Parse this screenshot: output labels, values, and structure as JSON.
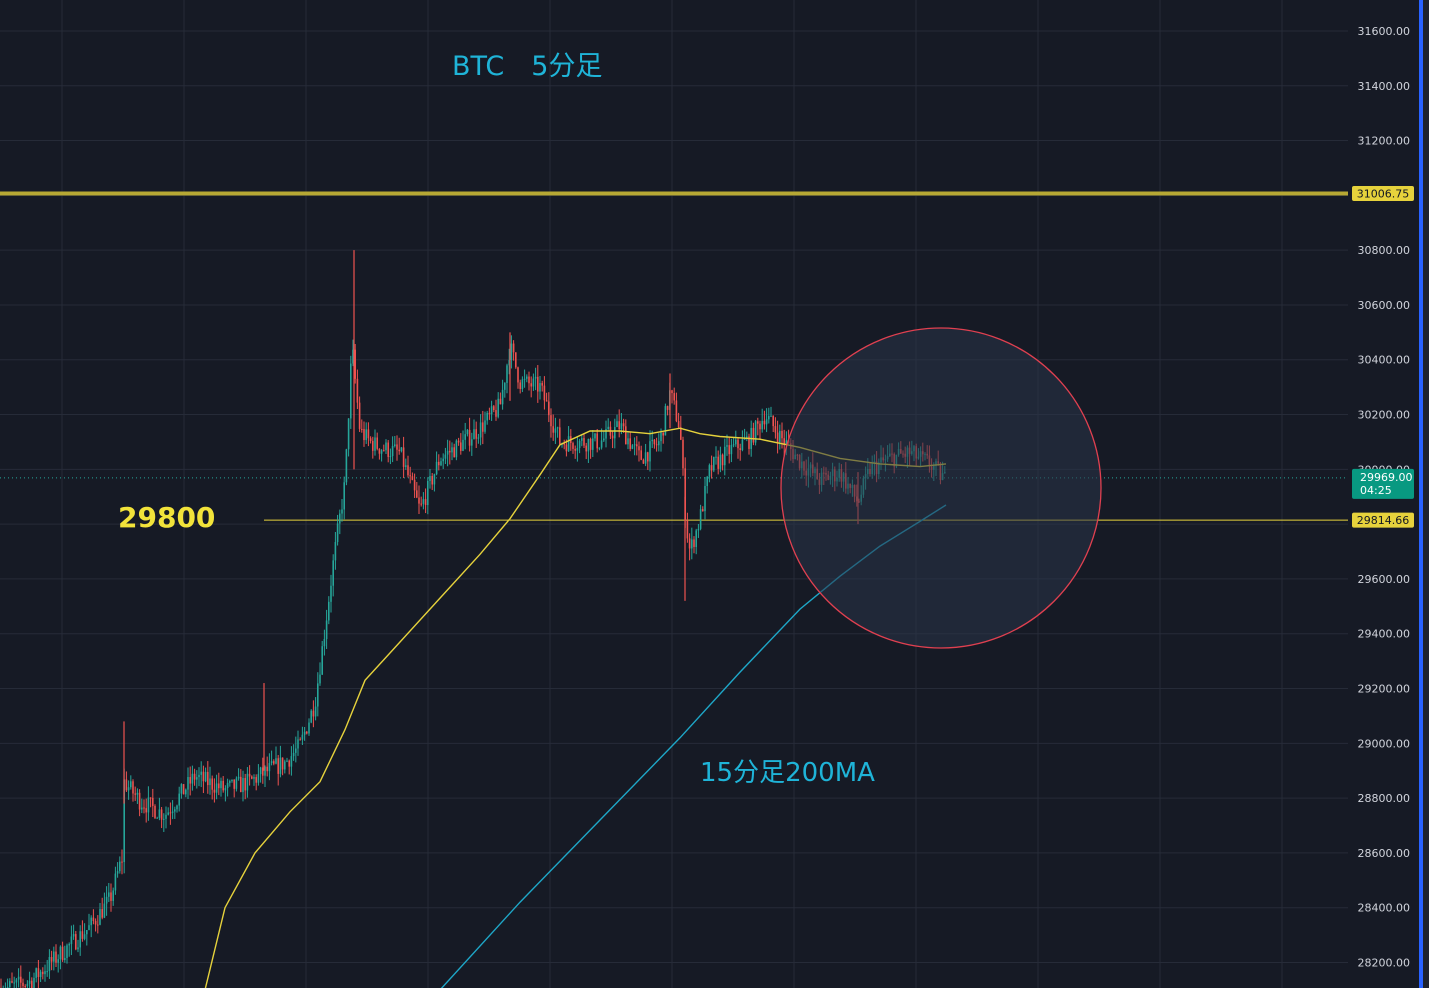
{
  "chart_data": {
    "type": "candlestick",
    "title": "BTC　5分足",
    "ma_label": "15分足200MA",
    "level_label": "29800",
    "y_ticks": [
      "28200.00",
      "28400.00",
      "28600.00",
      "28800.00",
      "29000.00",
      "29200.00",
      "29400.00",
      "29600.00",
      "30000.00",
      "30200.00",
      "30400.00",
      "30600.00",
      "30800.00",
      "31200.00",
      "31400.00",
      "31600.00"
    ],
    "ylim": [
      28107,
      31713
    ],
    "resistance": {
      "value": 31006.75,
      "label": "31006.75"
    },
    "support": {
      "value": 29814.66,
      "label": "29814.66"
    },
    "last_price": {
      "value": 29969.0,
      "label": "29969.00",
      "countdown": "04:25"
    },
    "grid": true,
    "colors": {
      "background": "#161a25",
      "grid": "#262b38",
      "up": "#26a69a",
      "down": "#ef5350",
      "ma_fast": "#e6d23c",
      "ma_200": "#1ea7c8",
      "resistance": "#b7a834",
      "support": "#e6d23c",
      "annotation": "#1fb4d8",
      "level_text": "#f2e33a",
      "circle": "#e04050"
    },
    "price_path": [
      [
        0,
        28100
      ],
      [
        30,
        28130
      ],
      [
        60,
        28230
      ],
      [
        90,
        28330
      ],
      [
        110,
        28430
      ],
      [
        122,
        28580
      ],
      [
        124,
        28860
      ],
      [
        140,
        28790
      ],
      [
        165,
        28740
      ],
      [
        195,
        28880
      ],
      [
        225,
        28830
      ],
      [
        250,
        28860
      ],
      [
        268,
        28900
      ],
      [
        285,
        28930
      ],
      [
        300,
        28990
      ],
      [
        315,
        29150
      ],
      [
        325,
        29420
      ],
      [
        333,
        29650
      ],
      [
        338,
        29780
      ],
      [
        345,
        29950
      ],
      [
        352,
        30450
      ],
      [
        360,
        30140
      ],
      [
        370,
        30100
      ],
      [
        380,
        30080
      ],
      [
        400,
        30060
      ],
      [
        420,
        29850
      ],
      [
        440,
        30040
      ],
      [
        460,
        30090
      ],
      [
        480,
        30150
      ],
      [
        500,
        30230
      ],
      [
        510,
        30450
      ],
      [
        520,
        30320
      ],
      [
        540,
        30300
      ],
      [
        560,
        30100
      ],
      [
        580,
        30100
      ],
      [
        600,
        30100
      ],
      [
        620,
        30160
      ],
      [
        640,
        30040
      ],
      [
        660,
        30100
      ],
      [
        670,
        30280
      ],
      [
        680,
        30150
      ],
      [
        686,
        29800
      ],
      [
        690,
        29700
      ],
      [
        700,
        29820
      ],
      [
        710,
        30000
      ],
      [
        730,
        30070
      ],
      [
        750,
        30110
      ],
      [
        765,
        30200
      ],
      [
        780,
        30120
      ],
      [
        800,
        30030
      ],
      [
        820,
        29960
      ],
      [
        840,
        29990
      ],
      [
        858,
        29880
      ],
      [
        870,
        30000
      ],
      [
        890,
        30040
      ],
      [
        910,
        30060
      ],
      [
        930,
        30020
      ],
      [
        946,
        29960
      ]
    ],
    "ma_fast": [
      [
        205,
        28100
      ],
      [
        225,
        28400
      ],
      [
        255,
        28600
      ],
      [
        290,
        28750
      ],
      [
        320,
        28860
      ],
      [
        345,
        29050
      ],
      [
        365,
        29230
      ],
      [
        400,
        29370
      ],
      [
        440,
        29530
      ],
      [
        480,
        29690
      ],
      [
        510,
        29820
      ],
      [
        540,
        29980
      ],
      [
        560,
        30090
      ],
      [
        590,
        30140
      ],
      [
        620,
        30140
      ],
      [
        650,
        30130
      ],
      [
        680,
        30150
      ],
      [
        700,
        30130
      ],
      [
        720,
        30120
      ],
      [
        760,
        30110
      ],
      [
        800,
        30080
      ],
      [
        840,
        30040
      ],
      [
        880,
        30020
      ],
      [
        920,
        30010
      ],
      [
        946,
        30020
      ]
    ],
    "ma_200": [
      [
        440,
        28100
      ],
      [
        520,
        28420
      ],
      [
        600,
        28720
      ],
      [
        680,
        29020
      ],
      [
        740,
        29260
      ],
      [
        800,
        29490
      ],
      [
        840,
        29610
      ],
      [
        880,
        29720
      ],
      [
        920,
        29810
      ],
      [
        946,
        29870
      ]
    ]
  }
}
